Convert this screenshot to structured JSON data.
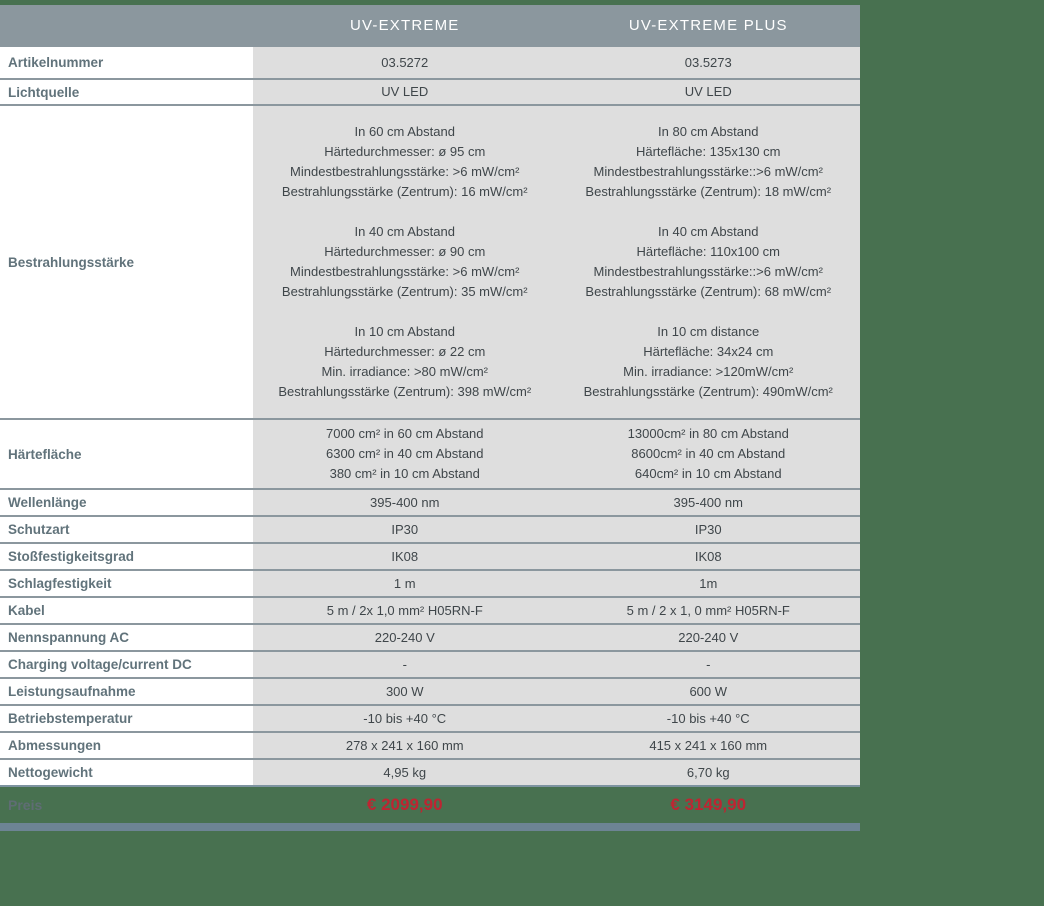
{
  "table": {
    "columns": [
      "UV-EXTREME",
      "UV-EXTREME PLUS"
    ],
    "rows": [
      {
        "label": "Artikelnummer",
        "values": [
          "03.5272",
          "03.5273"
        ]
      },
      {
        "label": "Lichtquelle",
        "values": [
          "UV LED",
          "UV LED"
        ]
      },
      {
        "label": "Bestrahlungsstärke",
        "values": [
          [
            "In 60 cm Abstand",
            "Härtedurchmesser: ø 95 cm",
            "Mindestbestrahlungsstärke: >6 mW/cm²",
            "Bestrahlungsstärke (Zentrum): 16 mW/cm²",
            "",
            "In 40 cm Abstand",
            "Härtedurchmesser: ø 90 cm",
            "Mindestbestrahlungsstärke: >6 mW/cm²",
            "Bestrahlungsstärke (Zentrum): 35 mW/cm²",
            "",
            "In 10 cm Abstand",
            "Härtedurchmesser: ø 22 cm",
            "Min. irradiance: >80 mW/cm²",
            "Bestrahlungsstärke (Zentrum): 398 mW/cm²"
          ],
          [
            "In 80 cm Abstand",
            "Härtefläche: 135x130 cm",
            "Mindestbestrahlungsstärke::>6 mW/cm²",
            "Bestrahlungsstärke (Zentrum): 18 mW/cm²",
            "",
            "In 40 cm Abstand",
            "Härtefläche: 110x100 cm",
            "Mindestbestrahlungsstärke::>6 mW/cm²",
            "Bestrahlungsstärke (Zentrum): 68 mW/cm²",
            "",
            "In 10 cm distance",
            "Härtefläche: 34x24 cm",
            "Min. irradiance: >120mW/cm²",
            "Bestrahlungsstärke (Zentrum): 490mW/cm²"
          ]
        ]
      },
      {
        "label": "Härtefläche",
        "values": [
          [
            "7000 cm² in 60 cm Abstand",
            "6300 cm² in 40 cm Abstand",
            "380 cm² in 10 cm Abstand"
          ],
          [
            "13000cm² in 80 cm Abstand",
            "8600cm² in 40 cm Abstand",
            "640cm² in 10 cm Abstand"
          ]
        ]
      },
      {
        "label": "Wellenlänge",
        "values": [
          "395-400 nm",
          "395-400 nm"
        ]
      },
      {
        "label": "Schutzart",
        "values": [
          "IP30",
          "IP30"
        ]
      },
      {
        "label": "Stoßfestigkeitsgrad",
        "values": [
          "IK08",
          "IK08"
        ]
      },
      {
        "label": "Schlagfestigkeit",
        "values": [
          "1 m",
          "1m"
        ]
      },
      {
        "label": "Kabel",
        "values": [
          "5 m / 2x 1,0 mm² H05RN-F",
          "5 m / 2 x 1, 0 mm² H05RN-F"
        ]
      },
      {
        "label": "Nennspannung AC",
        "values": [
          "220-240 V",
          "220-240 V"
        ]
      },
      {
        "label": "Charging voltage/current DC",
        "values": [
          "-",
          "-"
        ]
      },
      {
        "label": "Leistungsaufnahme",
        "values": [
          "300 W",
          "600 W"
        ]
      },
      {
        "label": "Betriebstemperatur",
        "values": [
          "-10 bis +40 °C",
          "-10 bis +40 °C"
        ]
      },
      {
        "label": "Abmessungen",
        "values": [
          "278 x 241 x 160 mm",
          "415 x 241 x 160 mm"
        ]
      },
      {
        "label": "Nettogewicht",
        "values": [
          "4,95 kg",
          "6,70 kg"
        ]
      },
      {
        "label": "Preis",
        "values": [
          "€ 2099,90",
          "€ 3149,90"
        ]
      }
    ]
  },
  "colors": {
    "page_background": "#487150",
    "header_background": "#8b979e",
    "cell_background": "#dedede",
    "label_text": "#61737b",
    "value_text": "#3f464a",
    "price_red": "#be2532",
    "bottom_bar": "#6d8494"
  }
}
